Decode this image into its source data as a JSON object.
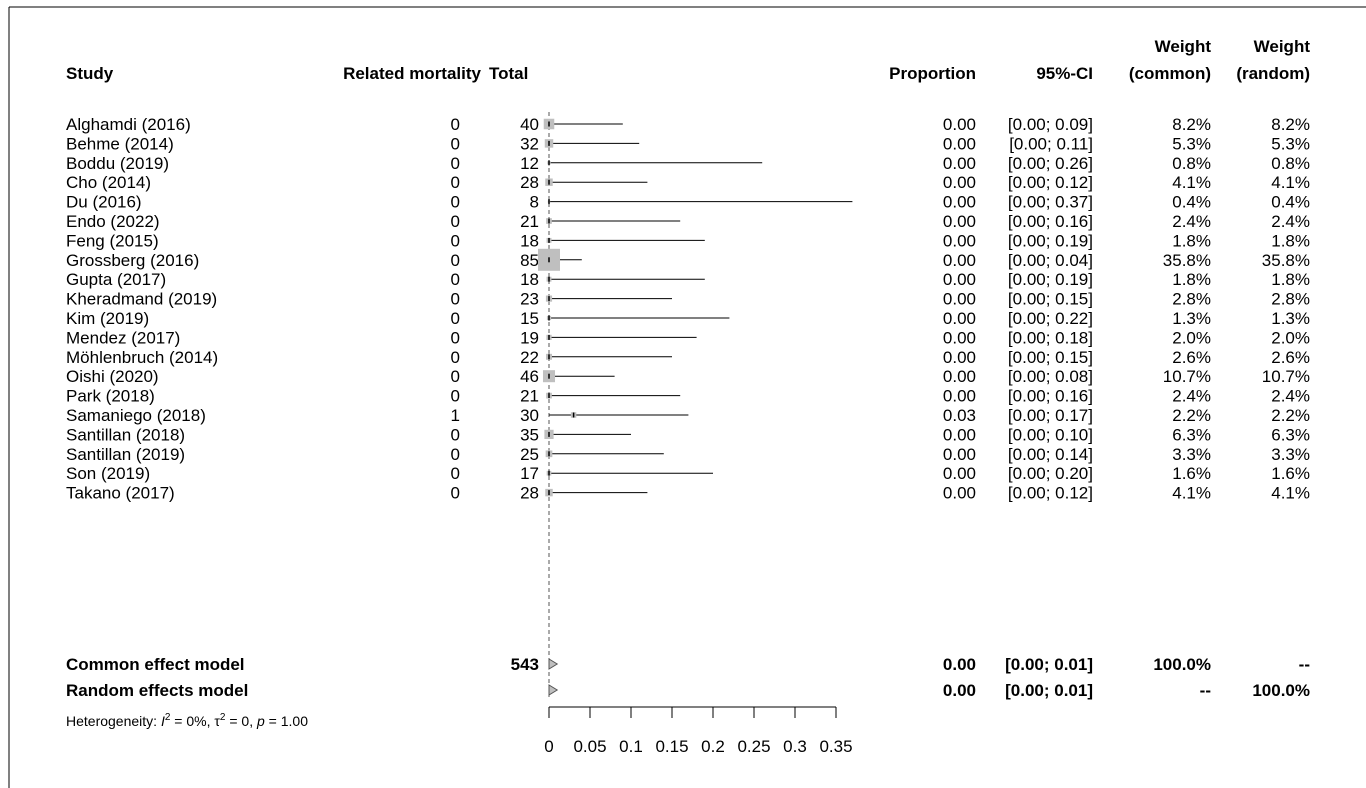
{
  "chart_data": {
    "type": "forest",
    "headers": {
      "study": "Study",
      "events": "Related mortality",
      "total": "Total",
      "proportion": "Proportion",
      "ci": "95%-CI",
      "weight_common": [
        "Weight",
        "(common)"
      ],
      "weight_random": [
        "Weight",
        "(random)"
      ]
    },
    "studies": [
      {
        "name": "Alghamdi (2016)",
        "events": "0",
        "total": "40",
        "prop": 0.0,
        "lower": 0.0,
        "upper": 0.09,
        "prop_text": "0.00",
        "ci_text": "[0.00; 0.09]",
        "w_common": "8.2%",
        "w_random": "8.2%",
        "weight": 8.2
      },
      {
        "name": "Behme (2014)",
        "events": "0",
        "total": "32",
        "prop": 0.0,
        "lower": 0.0,
        "upper": 0.11,
        "prop_text": "0.00",
        "ci_text": "[0.00; 0.11]",
        "w_common": "5.3%",
        "w_random": "5.3%",
        "weight": 5.3
      },
      {
        "name": "Boddu (2019)",
        "events": "0",
        "total": "12",
        "prop": 0.0,
        "lower": 0.0,
        "upper": 0.26,
        "prop_text": "0.00",
        "ci_text": "[0.00; 0.26]",
        "w_common": "0.8%",
        "w_random": "0.8%",
        "weight": 0.8
      },
      {
        "name": "Cho (2014)",
        "events": "0",
        "total": "28",
        "prop": 0.0,
        "lower": 0.0,
        "upper": 0.12,
        "prop_text": "0.00",
        "ci_text": "[0.00; 0.12]",
        "w_common": "4.1%",
        "w_random": "4.1%",
        "weight": 4.1
      },
      {
        "name": "Du (2016)",
        "events": "0",
        "total": "8",
        "prop": 0.0,
        "lower": 0.0,
        "upper": 0.37,
        "prop_text": "0.00",
        "ci_text": "[0.00; 0.37]",
        "w_common": "0.4%",
        "w_random": "0.4%",
        "weight": 0.4
      },
      {
        "name": "Endo (2022)",
        "events": "0",
        "total": "21",
        "prop": 0.0,
        "lower": 0.0,
        "upper": 0.16,
        "prop_text": "0.00",
        "ci_text": "[0.00; 0.16]",
        "w_common": "2.4%",
        "w_random": "2.4%",
        "weight": 2.4
      },
      {
        "name": "Feng (2015)",
        "events": "0",
        "total": "18",
        "prop": 0.0,
        "lower": 0.0,
        "upper": 0.19,
        "prop_text": "0.00",
        "ci_text": "[0.00; 0.19]",
        "w_common": "1.8%",
        "w_random": "1.8%",
        "weight": 1.8
      },
      {
        "name": "Grossberg (2016)",
        "events": "0",
        "total": "85",
        "prop": 0.0,
        "lower": 0.0,
        "upper": 0.04,
        "prop_text": "0.00",
        "ci_text": "[0.00; 0.04]",
        "w_common": "35.8%",
        "w_random": "35.8%",
        "weight": 35.8
      },
      {
        "name": "Gupta (2017)",
        "events": "0",
        "total": "18",
        "prop": 0.0,
        "lower": 0.0,
        "upper": 0.19,
        "prop_text": "0.00",
        "ci_text": "[0.00; 0.19]",
        "w_common": "1.8%",
        "w_random": "1.8%",
        "weight": 1.8
      },
      {
        "name": "Kheradmand (2019)",
        "events": "0",
        "total": "23",
        "prop": 0.0,
        "lower": 0.0,
        "upper": 0.15,
        "prop_text": "0.00",
        "ci_text": "[0.00; 0.15]",
        "w_common": "2.8%",
        "w_random": "2.8%",
        "weight": 2.8
      },
      {
        "name": "Kim (2019)",
        "events": "0",
        "total": "15",
        "prop": 0.0,
        "lower": 0.0,
        "upper": 0.22,
        "prop_text": "0.00",
        "ci_text": "[0.00; 0.22]",
        "w_common": "1.3%",
        "w_random": "1.3%",
        "weight": 1.3
      },
      {
        "name": "Mendez (2017)",
        "events": "0",
        "total": "19",
        "prop": 0.0,
        "lower": 0.0,
        "upper": 0.18,
        "prop_text": "0.00",
        "ci_text": "[0.00; 0.18]",
        "w_common": "2.0%",
        "w_random": "2.0%",
        "weight": 2.0
      },
      {
        "name": "Möhlenbruch (2014)",
        "events": "0",
        "total": "22",
        "prop": 0.0,
        "lower": 0.0,
        "upper": 0.15,
        "prop_text": "0.00",
        "ci_text": "[0.00; 0.15]",
        "w_common": "2.6%",
        "w_random": "2.6%",
        "weight": 2.6
      },
      {
        "name": "Oishi (2020)",
        "events": "0",
        "total": "46",
        "prop": 0.0,
        "lower": 0.0,
        "upper": 0.08,
        "prop_text": "0.00",
        "ci_text": "[0.00; 0.08]",
        "w_common": "10.7%",
        "w_random": "10.7%",
        "weight": 10.7
      },
      {
        "name": "Park (2018)",
        "events": "0",
        "total": "21",
        "prop": 0.0,
        "lower": 0.0,
        "upper": 0.16,
        "prop_text": "0.00",
        "ci_text": "[0.00; 0.16]",
        "w_common": "2.4%",
        "w_random": "2.4%",
        "weight": 2.4
      },
      {
        "name": "Samaniego (2018)",
        "events": "1",
        "total": "30",
        "prop": 0.03,
        "lower": 0.0,
        "upper": 0.17,
        "prop_text": "0.03",
        "ci_text": "[0.00; 0.17]",
        "w_common": "2.2%",
        "w_random": "2.2%",
        "weight": 2.2
      },
      {
        "name": "Santillan (2018)",
        "events": "0",
        "total": "35",
        "prop": 0.0,
        "lower": 0.0,
        "upper": 0.1,
        "prop_text": "0.00",
        "ci_text": "[0.00; 0.10]",
        "w_common": "6.3%",
        "w_random": "6.3%",
        "weight": 6.3
      },
      {
        "name": "Santillan (2019)",
        "events": "0",
        "total": "25",
        "prop": 0.0,
        "lower": 0.0,
        "upper": 0.14,
        "prop_text": "0.00",
        "ci_text": "[0.00; 0.14]",
        "w_common": "3.3%",
        "w_random": "3.3%",
        "weight": 3.3
      },
      {
        "name": "Son (2019)",
        "events": "0",
        "total": "17",
        "prop": 0.0,
        "lower": 0.0,
        "upper": 0.2,
        "prop_text": "0.00",
        "ci_text": "[0.00; 0.20]",
        "w_common": "1.6%",
        "w_random": "1.6%",
        "weight": 1.6
      },
      {
        "name": "Takano (2017)",
        "events": "0",
        "total": "28",
        "prop": 0.0,
        "lower": 0.0,
        "upper": 0.12,
        "prop_text": "0.00",
        "ci_text": "[0.00; 0.12]",
        "w_common": "4.1%",
        "w_random": "4.1%",
        "weight": 4.1
      }
    ],
    "pooled": [
      {
        "name": "Common effect model",
        "total": "543",
        "prop": 0.0,
        "lower": 0.0,
        "upper": 0.01,
        "prop_text": "0.00",
        "ci_text": "[0.00; 0.01]",
        "w_common": "100.0%",
        "w_random": "--"
      },
      {
        "name": "Random effects model",
        "total": "",
        "prop": 0.0,
        "lower": 0.0,
        "upper": 0.01,
        "prop_text": "0.00",
        "ci_text": "[0.00; 0.01]",
        "w_common": "--",
        "w_random": "100.0%"
      }
    ],
    "heterogeneity": {
      "prefix": "Heterogeneity: ",
      "i2_sym": "I",
      "i2_val": " = 0%, ",
      "tau2_sym": "τ",
      "tau2_val": " = 0, ",
      "p_sym": "p",
      "p_val": " = 1.00"
    },
    "x_axis": {
      "min": 0,
      "max": 0.35,
      "ticks": [
        0,
        0.05,
        0.1,
        0.15,
        0.2,
        0.25,
        0.3,
        0.35
      ],
      "tick_labels": [
        "0",
        "0.05",
        "0.1",
        "0.15",
        "0.2",
        "0.25",
        "0.3",
        "0.35"
      ],
      "reference": 0
    },
    "colors": {
      "box": "#bfbfbf",
      "line": "#000000",
      "diamond": "#bfbfbf",
      "frame": "#000000"
    }
  }
}
